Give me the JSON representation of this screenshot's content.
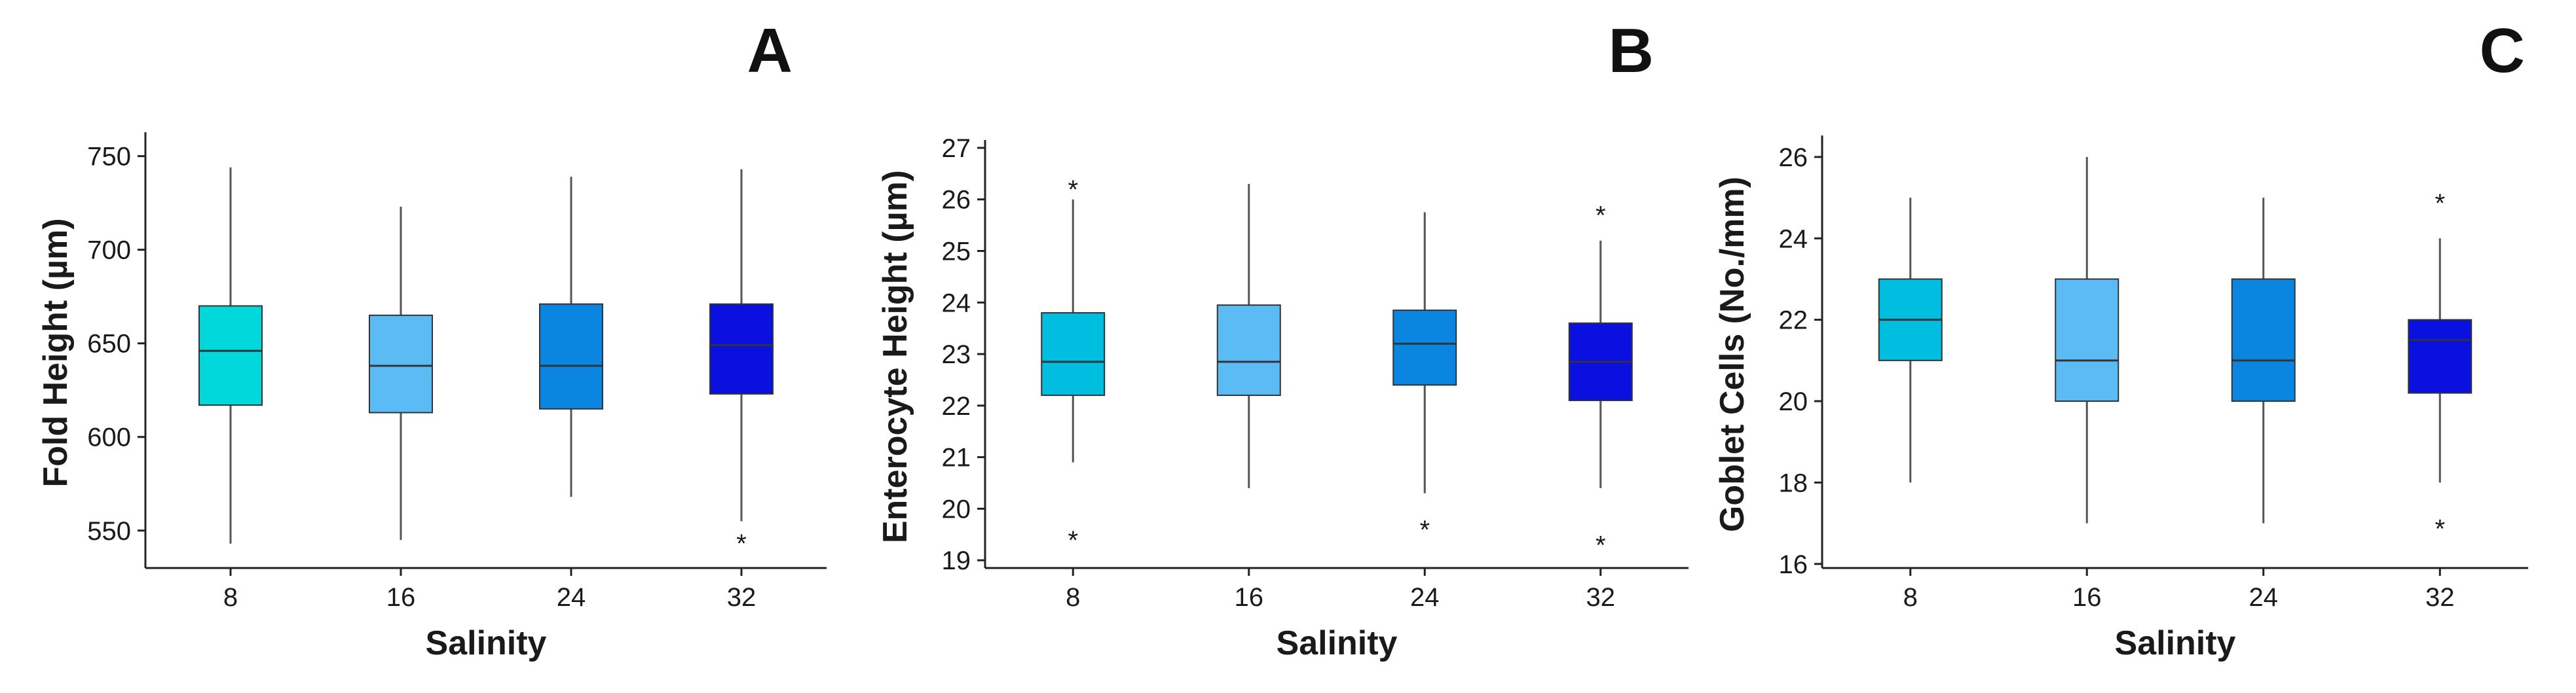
{
  "chart_data": [
    {
      "type": "box",
      "panel": "A",
      "xlabel": "Salinity",
      "ylabel": "Fold Height (µm)",
      "categories": [
        "8",
        "16",
        "24",
        "32"
      ],
      "ylim": [
        530,
        760
      ],
      "yticks": [
        550,
        600,
        650,
        700,
        750
      ],
      "boxes": [
        {
          "category": "8",
          "min": 543,
          "q1": 617,
          "median": 646,
          "q3": 670,
          "max": 744,
          "color": "#00D8DC",
          "outliers": []
        },
        {
          "category": "16",
          "min": 545,
          "q1": 613,
          "median": 638,
          "q3": 665,
          "max": 723,
          "color": "#5BBBF5",
          "outliers": []
        },
        {
          "category": "24",
          "min": 568,
          "q1": 615,
          "median": 638,
          "q3": 671,
          "max": 739,
          "color": "#0A86E0",
          "outliers": []
        },
        {
          "category": "32",
          "min": 555,
          "q1": 623,
          "median": 649,
          "q3": 671,
          "max": 743,
          "color": "#0A10E0",
          "outliers": [
            546
          ]
        }
      ]
    },
    {
      "type": "box",
      "panel": "B",
      "xlabel": "Salinity",
      "ylabel": "Enterocyte Height (µm)",
      "categories": [
        "8",
        "16",
        "24",
        "32"
      ],
      "ylim": [
        18.85,
        27.05
      ],
      "yticks": [
        19,
        20,
        21,
        22,
        23,
        24,
        25,
        26,
        27
      ],
      "boxes": [
        {
          "category": "8",
          "min": 20.9,
          "q1": 22.2,
          "median": 22.85,
          "q3": 23.8,
          "max": 26.0,
          "color": "#00BEE0",
          "outliers": [
            26.3,
            19.5
          ]
        },
        {
          "category": "16",
          "min": 20.4,
          "q1": 22.2,
          "median": 22.85,
          "q3": 23.95,
          "max": 26.3,
          "color": "#5BBBF5",
          "outliers": []
        },
        {
          "category": "24",
          "min": 20.3,
          "q1": 22.4,
          "median": 23.2,
          "q3": 23.85,
          "max": 25.75,
          "color": "#0A86E0",
          "outliers": [
            19.7
          ]
        },
        {
          "category": "32",
          "min": 20.4,
          "q1": 22.1,
          "median": 22.85,
          "q3": 23.6,
          "max": 25.2,
          "color": "#0A10E0",
          "outliers": [
            25.8,
            19.4
          ]
        }
      ]
    },
    {
      "type": "box",
      "panel": "C",
      "xlabel": "Salinity",
      "ylabel": "Goblet Cells (No./mm)",
      "categories": [
        "8",
        "16",
        "24",
        "32"
      ],
      "ylim": [
        15.9,
        26.4
      ],
      "yticks": [
        16,
        18,
        20,
        22,
        24,
        26
      ],
      "boxes": [
        {
          "category": "8",
          "min": 18.0,
          "q1": 21.0,
          "median": 22.0,
          "q3": 23.0,
          "max": 25.0,
          "color": "#00BEE0",
          "outliers": []
        },
        {
          "category": "16",
          "min": 17.0,
          "q1": 20.0,
          "median": 21.0,
          "q3": 23.0,
          "max": 26.0,
          "color": "#5BBBF5",
          "outliers": []
        },
        {
          "category": "24",
          "min": 17.0,
          "q1": 20.0,
          "median": 21.0,
          "q3": 23.0,
          "max": 25.0,
          "color": "#0A86E0",
          "outliers": []
        },
        {
          "category": "32",
          "min": 18.0,
          "q1": 20.2,
          "median": 21.5,
          "q3": 22.0,
          "max": 24.0,
          "color": "#0A10E0",
          "outliers": [
            25.0,
            17.0
          ]
        }
      ]
    }
  ],
  "styles": {
    "axis_color": "#222222",
    "whisker_color": "#555555",
    "median_color": "#333333",
    "box_edge_color": "#333333"
  },
  "outlier_marker": "*"
}
